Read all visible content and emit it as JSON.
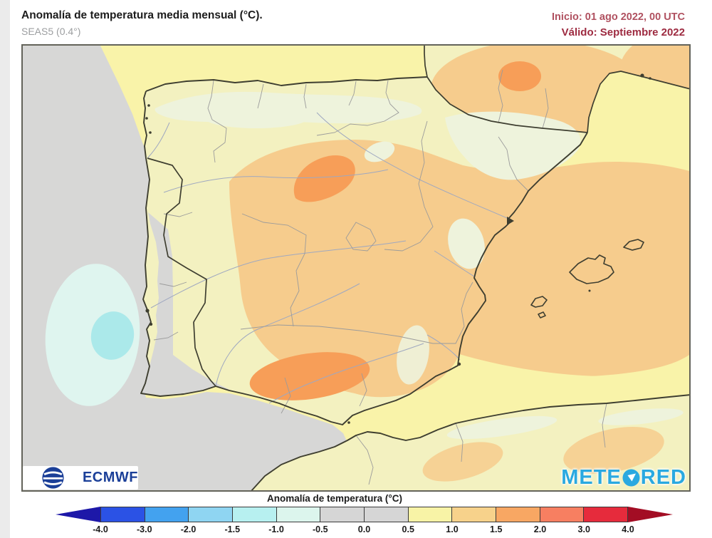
{
  "header": {
    "title": "Anomalía de temperatura media mensual (°C).",
    "subtitle": "SEAS5 (0.4°)",
    "init_label": "Inicio: 01 ago 2022, 00 UTC",
    "valid_label": "Válido: Septiembre 2022"
  },
  "branding": {
    "ecmwf": "ECMWF",
    "meteored_prefix": "METE",
    "meteored_suffix": "RED"
  },
  "legend": {
    "title": "Anomalía de temperatura (°C)",
    "tick_labels": [
      "-4.0",
      "-3.0",
      "-2.0",
      "-1.5",
      "-1.0",
      "-0.5",
      "0.0",
      "0.5",
      "1.0",
      "1.5",
      "2.0",
      "3.0",
      "4.0"
    ],
    "segment_colors": [
      "#2b52e5",
      "#43a2ef",
      "#8fd5f2",
      "#b7f0f0",
      "#dcf5ed",
      "#d6d6d6",
      "#d6d6d6",
      "#f8f3a6",
      "#f7d28b",
      "#f8a763",
      "#f77f61",
      "#e62b3c"
    ],
    "arrow_left_color": "#1d18a8",
    "arrow_right_color": "#a30d24"
  },
  "colors": {
    "page_bg": "#ffffff",
    "edge_strip": "#ebebeb",
    "title_text": "#1c1c1c",
    "subtitle_text": "#9c9ea0",
    "init_text": "#b05160",
    "valid_text": "#9d2a40",
    "map_border": "#63635a",
    "sea_yellow": "#f9f3a9",
    "ocean_gray": "#d7d7d6",
    "land_yellow": "#f3f1c0",
    "mountain_pale": "#eef3dc",
    "warm_light": "#f6cc8d",
    "warm_mid": "#f79e58",
    "cool_pale": "#dff5ef",
    "cool_cyan": "#abe9ea",
    "coast_dark": "#3e3e30",
    "line_thin": "#9b9b9b",
    "river_blue": "#9fa8c0",
    "ecmwf_blue": "#1b3f98",
    "meteored_blue": "#2aa9e0",
    "legend_text": "#1b1b1b"
  }
}
